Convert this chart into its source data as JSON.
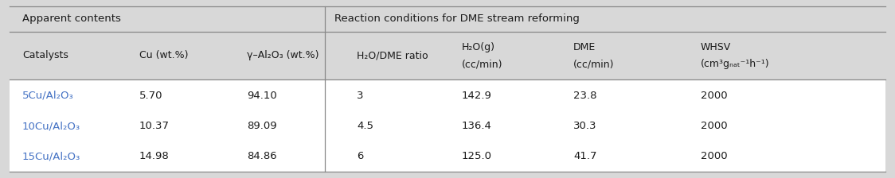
{
  "bg_color": "#d8d8d8",
  "header_bg": "#d8d8d8",
  "data_bg": "#ffffff",
  "text_color": "#1a1a1a",
  "blue_text_color": "#4472C4",
  "line_color": "#888888",
  "header_group1": "Apparent contents",
  "header_group2": "Reaction conditions for DME stream reforming",
  "catalysts": [
    "5Cu/Al₂O₃",
    "10Cu/Al₂O₃",
    "15Cu/Al₂O₃"
  ],
  "cu_values": [
    "5.70",
    "10.37",
    "14.98"
  ],
  "al2o3_values": [
    "94.10",
    "89.09",
    "84.86"
  ],
  "ratio_values": [
    "3",
    "4.5",
    "6"
  ],
  "h2o_values": [
    "142.9",
    "136.4",
    "125.0"
  ],
  "dme_values": [
    "23.8",
    "30.3",
    "41.7"
  ],
  "whsv_values": [
    "2000",
    "2000",
    "2000"
  ],
  "figsize": [
    11.24,
    2.24
  ],
  "dpi": 100
}
